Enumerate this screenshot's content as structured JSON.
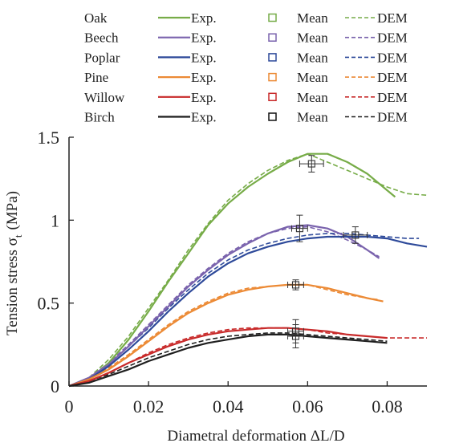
{
  "legend": {
    "exp_label": "Exp.",
    "mean_label": "Mean",
    "dem_label": "DEM"
  },
  "chart_data": {
    "type": "line",
    "xlabel": "Diametral deformation ΔL/D",
    "ylabel": "Tension stress σ",
    "ylabel_subscript": "t",
    "ylabel_unit": "(MPa)",
    "xlim": [
      0,
      0.09
    ],
    "ylim": [
      0,
      1.5
    ],
    "x_ticks": [
      0,
      0.02,
      0.04,
      0.06,
      0.08
    ],
    "x_tick_labels": [
      "0",
      "0.02",
      "0.04",
      "0.06",
      "0.08"
    ],
    "y_ticks": [
      0,
      0.5,
      1,
      1.5
    ],
    "y_tick_labels": [
      "0",
      "0.5",
      "1",
      "1.5"
    ],
    "grid": false,
    "legend_position": "top",
    "series": [
      {
        "name": "Oak",
        "color": "#77ac48",
        "exp": [
          [
            0,
            0
          ],
          [
            0.005,
            0.04
          ],
          [
            0.01,
            0.14
          ],
          [
            0.015,
            0.28
          ],
          [
            0.02,
            0.45
          ],
          [
            0.025,
            0.63
          ],
          [
            0.03,
            0.8
          ],
          [
            0.035,
            0.97
          ],
          [
            0.04,
            1.1
          ],
          [
            0.045,
            1.2
          ],
          [
            0.05,
            1.28
          ],
          [
            0.055,
            1.35
          ],
          [
            0.06,
            1.4
          ],
          [
            0.065,
            1.4
          ],
          [
            0.07,
            1.35
          ],
          [
            0.075,
            1.28
          ],
          [
            0.08,
            1.18
          ],
          [
            0.082,
            1.14
          ]
        ],
        "dem": [
          [
            0,
            0
          ],
          [
            0.005,
            0.05
          ],
          [
            0.01,
            0.16
          ],
          [
            0.015,
            0.3
          ],
          [
            0.02,
            0.47
          ],
          [
            0.025,
            0.64
          ],
          [
            0.03,
            0.82
          ],
          [
            0.035,
            0.98
          ],
          [
            0.04,
            1.12
          ],
          [
            0.045,
            1.22
          ],
          [
            0.05,
            1.3
          ],
          [
            0.055,
            1.36
          ],
          [
            0.06,
            1.4
          ],
          [
            0.065,
            1.35
          ],
          [
            0.07,
            1.3
          ],
          [
            0.075,
            1.25
          ],
          [
            0.08,
            1.2
          ],
          [
            0.085,
            1.16
          ],
          [
            0.09,
            1.15
          ]
        ],
        "mean": {
          "x": 0.061,
          "y": 1.34,
          "x_err": 0.003,
          "y_err": 0.05
        }
      },
      {
        "name": "Beech",
        "color": "#7a63ad",
        "exp": [
          [
            0,
            0
          ],
          [
            0.005,
            0.05
          ],
          [
            0.01,
            0.13
          ],
          [
            0.015,
            0.24
          ],
          [
            0.02,
            0.36
          ],
          [
            0.025,
            0.48
          ],
          [
            0.03,
            0.6
          ],
          [
            0.035,
            0.7
          ],
          [
            0.04,
            0.79
          ],
          [
            0.045,
            0.86
          ],
          [
            0.05,
            0.92
          ],
          [
            0.055,
            0.96
          ],
          [
            0.06,
            0.97
          ],
          [
            0.065,
            0.95
          ],
          [
            0.07,
            0.9
          ],
          [
            0.075,
            0.82
          ],
          [
            0.078,
            0.77
          ]
        ],
        "dem": [
          [
            0,
            0
          ],
          [
            0.005,
            0.05
          ],
          [
            0.01,
            0.14
          ],
          [
            0.015,
            0.25
          ],
          [
            0.02,
            0.37
          ],
          [
            0.025,
            0.49
          ],
          [
            0.03,
            0.61
          ],
          [
            0.035,
            0.71
          ],
          [
            0.04,
            0.8
          ],
          [
            0.045,
            0.87
          ],
          [
            0.05,
            0.92
          ],
          [
            0.055,
            0.95
          ],
          [
            0.06,
            0.96
          ],
          [
            0.065,
            0.93
          ],
          [
            0.07,
            0.88
          ],
          [
            0.075,
            0.82
          ],
          [
            0.078,
            0.78
          ]
        ],
        "mean": {
          "x": 0.058,
          "y": 0.95,
          "x_err": 0.002,
          "y_err": 0.08
        }
      },
      {
        "name": "Poplar",
        "color": "#2e4a9a",
        "exp": [
          [
            0,
            0
          ],
          [
            0.005,
            0.04
          ],
          [
            0.01,
            0.12
          ],
          [
            0.015,
            0.22
          ],
          [
            0.02,
            0.33
          ],
          [
            0.025,
            0.45
          ],
          [
            0.03,
            0.56
          ],
          [
            0.035,
            0.66
          ],
          [
            0.04,
            0.74
          ],
          [
            0.045,
            0.8
          ],
          [
            0.05,
            0.84
          ],
          [
            0.055,
            0.87
          ],
          [
            0.06,
            0.89
          ],
          [
            0.065,
            0.9
          ],
          [
            0.07,
            0.9
          ],
          [
            0.075,
            0.9
          ],
          [
            0.08,
            0.89
          ],
          [
            0.085,
            0.86
          ],
          [
            0.09,
            0.84
          ]
        ],
        "dem": [
          [
            0,
            0
          ],
          [
            0.005,
            0.05
          ],
          [
            0.01,
            0.13
          ],
          [
            0.015,
            0.24
          ],
          [
            0.02,
            0.35
          ],
          [
            0.025,
            0.47
          ],
          [
            0.03,
            0.58
          ],
          [
            0.035,
            0.68
          ],
          [
            0.04,
            0.76
          ],
          [
            0.045,
            0.82
          ],
          [
            0.05,
            0.86
          ],
          [
            0.055,
            0.89
          ],
          [
            0.06,
            0.91
          ],
          [
            0.065,
            0.92
          ],
          [
            0.07,
            0.92
          ],
          [
            0.075,
            0.91
          ],
          [
            0.08,
            0.9
          ],
          [
            0.085,
            0.89
          ],
          [
            0.088,
            0.89
          ]
        ],
        "mean": {
          "x": 0.072,
          "y": 0.91,
          "x_err": 0.003,
          "y_err": 0.05
        }
      },
      {
        "name": "Pine",
        "color": "#ec8a35",
        "exp": [
          [
            0,
            0
          ],
          [
            0.005,
            0.04
          ],
          [
            0.01,
            0.1
          ],
          [
            0.015,
            0.18
          ],
          [
            0.02,
            0.27
          ],
          [
            0.025,
            0.36
          ],
          [
            0.03,
            0.44
          ],
          [
            0.035,
            0.5
          ],
          [
            0.04,
            0.55
          ],
          [
            0.045,
            0.58
          ],
          [
            0.05,
            0.6
          ],
          [
            0.055,
            0.61
          ],
          [
            0.06,
            0.61
          ],
          [
            0.065,
            0.59
          ],
          [
            0.07,
            0.56
          ],
          [
            0.075,
            0.53
          ],
          [
            0.079,
            0.51
          ]
        ],
        "dem": [
          [
            0,
            0
          ],
          [
            0.005,
            0.04
          ],
          [
            0.01,
            0.11
          ],
          [
            0.015,
            0.19
          ],
          [
            0.02,
            0.28
          ],
          [
            0.025,
            0.37
          ],
          [
            0.03,
            0.45
          ],
          [
            0.035,
            0.51
          ],
          [
            0.04,
            0.56
          ],
          [
            0.045,
            0.59
          ],
          [
            0.05,
            0.6
          ],
          [
            0.055,
            0.61
          ],
          [
            0.06,
            0.61
          ],
          [
            0.065,
            0.58
          ],
          [
            0.07,
            0.55
          ],
          [
            0.075,
            0.53
          ],
          [
            0.078,
            0.52
          ]
        ],
        "mean": {
          "x": 0.057,
          "y": 0.61,
          "x_err": 0.002,
          "y_err": 0.03
        }
      },
      {
        "name": "Willow",
        "color": "#c82a2a",
        "exp": [
          [
            0,
            0
          ],
          [
            0.005,
            0.03
          ],
          [
            0.01,
            0.08
          ],
          [
            0.015,
            0.14
          ],
          [
            0.02,
            0.19
          ],
          [
            0.025,
            0.24
          ],
          [
            0.03,
            0.28
          ],
          [
            0.035,
            0.31
          ],
          [
            0.04,
            0.33
          ],
          [
            0.045,
            0.34
          ],
          [
            0.05,
            0.35
          ],
          [
            0.055,
            0.35
          ],
          [
            0.06,
            0.34
          ],
          [
            0.065,
            0.33
          ],
          [
            0.07,
            0.31
          ],
          [
            0.075,
            0.3
          ],
          [
            0.08,
            0.29
          ]
        ],
        "dem": [
          [
            0,
            0
          ],
          [
            0.005,
            0.03
          ],
          [
            0.01,
            0.08
          ],
          [
            0.015,
            0.14
          ],
          [
            0.02,
            0.2
          ],
          [
            0.025,
            0.25
          ],
          [
            0.03,
            0.29
          ],
          [
            0.035,
            0.32
          ],
          [
            0.04,
            0.34
          ],
          [
            0.045,
            0.35
          ],
          [
            0.05,
            0.35
          ],
          [
            0.055,
            0.35
          ],
          [
            0.06,
            0.34
          ],
          [
            0.065,
            0.32
          ],
          [
            0.07,
            0.31
          ],
          [
            0.075,
            0.3
          ],
          [
            0.08,
            0.29
          ],
          [
            0.085,
            0.29
          ],
          [
            0.09,
            0.29
          ]
        ],
        "mean": {
          "x": 0.057,
          "y": 0.33,
          "x_err": 0.002,
          "y_err": 0.07
        }
      },
      {
        "name": "Birch",
        "color": "#1f1f1f",
        "exp": [
          [
            0,
            0
          ],
          [
            0.005,
            0.02
          ],
          [
            0.01,
            0.06
          ],
          [
            0.015,
            0.1
          ],
          [
            0.02,
            0.15
          ],
          [
            0.025,
            0.19
          ],
          [
            0.03,
            0.23
          ],
          [
            0.035,
            0.26
          ],
          [
            0.04,
            0.28
          ],
          [
            0.045,
            0.3
          ],
          [
            0.05,
            0.31
          ],
          [
            0.055,
            0.31
          ],
          [
            0.06,
            0.3
          ],
          [
            0.065,
            0.29
          ],
          [
            0.07,
            0.28
          ],
          [
            0.075,
            0.27
          ],
          [
            0.08,
            0.26
          ]
        ],
        "dem": [
          [
            0,
            0
          ],
          [
            0.005,
            0.03
          ],
          [
            0.01,
            0.07
          ],
          [
            0.015,
            0.12
          ],
          [
            0.02,
            0.17
          ],
          [
            0.025,
            0.21
          ],
          [
            0.03,
            0.25
          ],
          [
            0.035,
            0.28
          ],
          [
            0.04,
            0.3
          ],
          [
            0.045,
            0.31
          ],
          [
            0.05,
            0.32
          ],
          [
            0.055,
            0.32
          ],
          [
            0.06,
            0.31
          ],
          [
            0.065,
            0.3
          ],
          [
            0.07,
            0.29
          ],
          [
            0.075,
            0.28
          ],
          [
            0.08,
            0.27
          ]
        ],
        "mean": {
          "x": 0.057,
          "y": 0.3,
          "x_err": 0.002,
          "y_err": 0.07
        }
      }
    ]
  }
}
